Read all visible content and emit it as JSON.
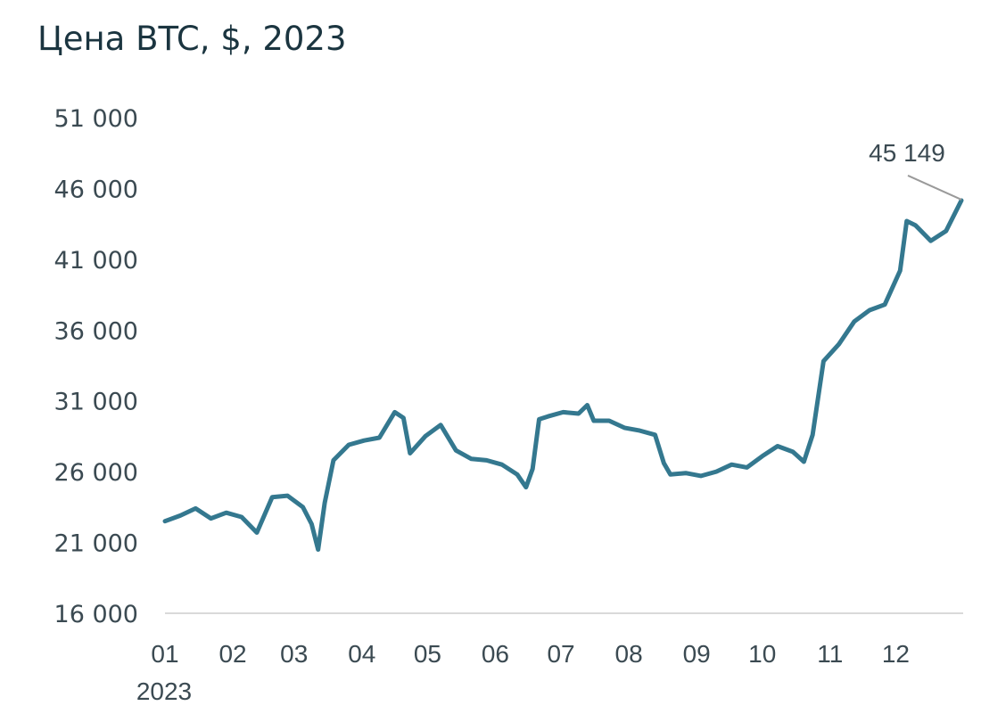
{
  "chart_data": {
    "type": "line",
    "title": "Цена BTC, $, 2023",
    "xlabel": "",
    "ylabel": "",
    "ylim": [
      16000,
      51000
    ],
    "yticks": [
      "51 000",
      "46 000",
      "41 000",
      "36 000",
      "31 000",
      "26 000",
      "21 000",
      "16 000"
    ],
    "ytick_values": [
      51000,
      46000,
      41000,
      36000,
      31000,
      26000,
      21000,
      16000
    ],
    "xticks": [
      "01",
      "02",
      "03",
      "04",
      "05",
      "06",
      "07",
      "08",
      "09",
      "10",
      "11",
      "12"
    ],
    "x_year_label": "2023",
    "grid": false,
    "line_color": "#34788f",
    "annotation": {
      "text": "45 149",
      "x": "2023-12-31",
      "y": 45149
    },
    "series": [
      {
        "name": "",
        "x": [
          "2023-01-01",
          "2023-01-08",
          "2023-01-15",
          "2023-01-22",
          "2023-01-29",
          "2023-02-05",
          "2023-02-12",
          "2023-02-19",
          "2023-02-26",
          "2023-03-05",
          "2023-03-09",
          "2023-03-12",
          "2023-03-15",
          "2023-03-19",
          "2023-03-26",
          "2023-04-02",
          "2023-04-09",
          "2023-04-16",
          "2023-04-20",
          "2023-04-23",
          "2023-04-30",
          "2023-05-07",
          "2023-05-14",
          "2023-05-21",
          "2023-05-28",
          "2023-06-04",
          "2023-06-11",
          "2023-06-15",
          "2023-06-18",
          "2023-06-21",
          "2023-06-25",
          "2023-07-02",
          "2023-07-09",
          "2023-07-13",
          "2023-07-16",
          "2023-07-23",
          "2023-07-30",
          "2023-08-06",
          "2023-08-13",
          "2023-08-17",
          "2023-08-20",
          "2023-08-27",
          "2023-09-03",
          "2023-09-10",
          "2023-09-17",
          "2023-09-24",
          "2023-10-01",
          "2023-10-08",
          "2023-10-15",
          "2023-10-20",
          "2023-10-24",
          "2023-10-29",
          "2023-11-05",
          "2023-11-12",
          "2023-11-19",
          "2023-11-26",
          "2023-12-03",
          "2023-12-06",
          "2023-12-10",
          "2023-12-17",
          "2023-12-24",
          "2023-12-31"
        ],
        "values": [
          22500,
          22900,
          23400,
          22700,
          23100,
          22800,
          21700,
          24200,
          24300,
          23500,
          22300,
          20500,
          23800,
          26800,
          27900,
          28200,
          28400,
          30200,
          29800,
          27300,
          28500,
          29300,
          27500,
          26900,
          26800,
          26500,
          25800,
          24900,
          26200,
          29700,
          29900,
          30200,
          30100,
          30700,
          29600,
          29600,
          29100,
          28900,
          28600,
          26600,
          25800,
          25900,
          25700,
          26000,
          26500,
          26300,
          27100,
          27800,
          27400,
          26700,
          28600,
          33800,
          35000,
          36600,
          37400,
          37800,
          40200,
          43700,
          43400,
          42300,
          43000,
          45149
        ]
      }
    ]
  }
}
